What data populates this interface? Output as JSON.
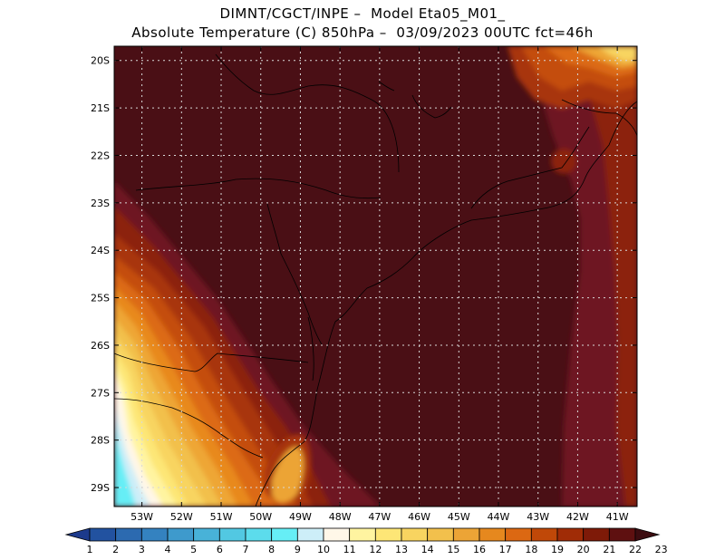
{
  "header": {
    "line1": "DIMNT/CGCT/INPE –  Model Eta05_M01_",
    "line2": "Absolute Temperature (C) 850hPa –  03/09/2023 00UTC fct=46h"
  },
  "map": {
    "lat_labels": [
      "20S",
      "21S",
      "22S",
      "23S",
      "24S",
      "25S",
      "26S",
      "27S",
      "28S",
      "29S"
    ],
    "lon_labels": [
      "53W",
      "52W",
      "51W",
      "50W",
      "49W",
      "48W",
      "47W",
      "46W",
      "45W",
      "44W",
      "43W",
      "42W",
      "41W"
    ],
    "lat_values": [
      -20,
      -21,
      -22,
      -23,
      -24,
      -25,
      -26,
      -27,
      -28,
      -29
    ],
    "lon_values": [
      -53,
      -52,
      -51,
      -50,
      -49,
      -48,
      -47,
      -46,
      -45,
      -44,
      -43,
      -42,
      -41
    ],
    "lon_range": [
      -53.7,
      -40.5
    ],
    "lat_range": [
      -29.4,
      -19.7
    ],
    "grid": "dotted",
    "background_color": "#4a0f15"
  },
  "colorbar": {
    "labels": [
      "1",
      "2",
      "3",
      "4",
      "5",
      "6",
      "7",
      "8",
      "9",
      "10",
      "11",
      "12",
      "13",
      "14",
      "15",
      "16",
      "17",
      "18",
      "19",
      "20",
      "21",
      "22",
      "23"
    ],
    "colors": [
      "#1c3a8c",
      "#2252a0",
      "#2c6ab0",
      "#3482c0",
      "#3e9acc",
      "#48b2d8",
      "#52c8e2",
      "#5cdcec",
      "#66eef6",
      "#cdeef8",
      "#fff7e8",
      "#fff4a0",
      "#fde676",
      "#f8d460",
      "#f2c04c",
      "#eca436",
      "#e6881e",
      "#dc6812",
      "#c04808",
      "#a02c06",
      "#7e1a08",
      "#5e1010",
      "#3c0c10"
    ]
  }
}
